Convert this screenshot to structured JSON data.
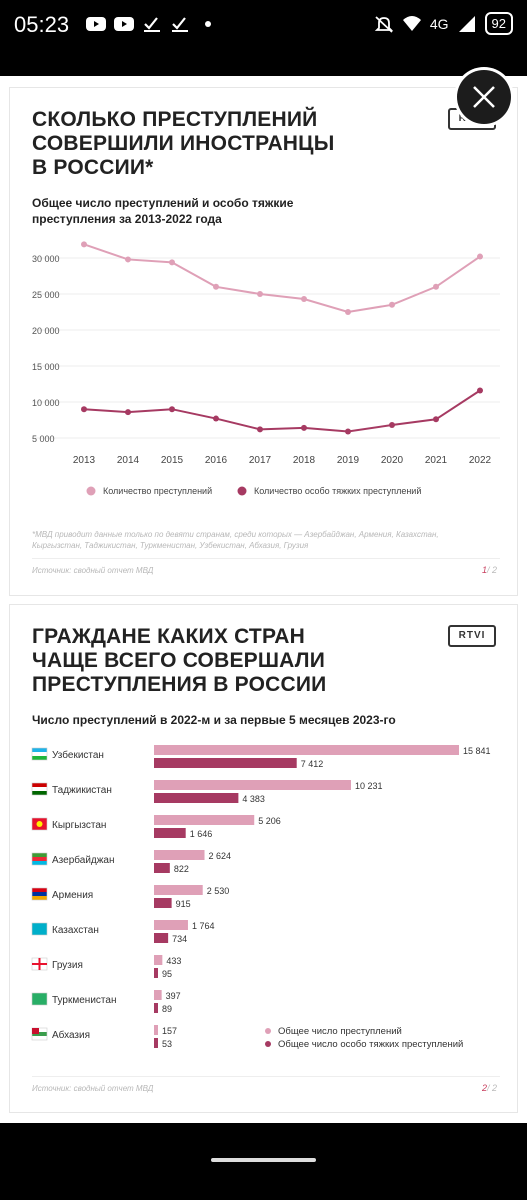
{
  "status_bar": {
    "time": "05:23",
    "network": "4G",
    "battery": "92",
    "icons": [
      "youtube-icon",
      "youtube-icon",
      "check-icon",
      "check-icon",
      "dot-icon",
      "mute-icon",
      "wifi-icon",
      "signal-icon"
    ]
  },
  "colors": {
    "light": "#dfa0b7",
    "dark": "#a63a62",
    "accent": "#c83c5c"
  },
  "card1": {
    "title_lines": [
      "СКОЛЬКО ПРЕСТУПЛЕНИЙ",
      "СОВЕРШИЛИ ИНОСТРАНЦЫ",
      "В РОССИИ*"
    ],
    "logo": "RTVI",
    "subtitle_lines": [
      "Общее число преступлений и особо тяжкие",
      "преступления за 2013-2022 года"
    ],
    "footnote_lines": [
      "*МВД приводит данные только по девяти странам, среди которых — Азербайджан, Армения, Казахстан,",
      "Кыргызстан, Таджикистан, Туркменистан, Узбекистан, Абхазия, Грузия"
    ],
    "source": "Источник: сводный отчет МВД",
    "page_current": "1",
    "page_total": "/ 2"
  },
  "card2": {
    "title_lines": [
      "ГРАЖДАНЕ КАКИХ СТРАН",
      "ЧАЩЕ ВСЕГО СОВЕРШАЛИ",
      "ПРЕСТУПЛЕНИЯ В РОССИИ"
    ],
    "logo": "RTVI",
    "subtitle": "Число преступлений в 2022-м и за первые 5 месяцев 2023-го",
    "source": "Источник: сводный отчет МВД",
    "page_current": "2",
    "page_total": "/ 2"
  },
  "chart_data": [
    {
      "type": "line",
      "title": "Общее число преступлений и особо тяжкие преступления за 2013-2022 года",
      "x": [
        2013,
        2014,
        2015,
        2016,
        2017,
        2018,
        2019,
        2020,
        2021,
        2022
      ],
      "x_tick_labels": [
        "2013",
        "2014",
        "2015",
        "2016",
        "2017",
        "2018",
        "2019",
        "2020",
        "2021",
        "2022"
      ],
      "y_tick_labels": [
        "30 000",
        "25 000",
        "20 000",
        "15 000",
        "10 000",
        "5 000"
      ],
      "y_ticks": [
        30000,
        25000,
        20000,
        15000,
        10000,
        5000
      ],
      "ylim": [
        5000,
        30000
      ],
      "grid": true,
      "legend_position": "bottom",
      "series": [
        {
          "name": "Количество преступлений",
          "color": "#dfa0b7",
          "values": [
            31900,
            29800,
            29400,
            26000,
            25000,
            24300,
            22500,
            23500,
            26000,
            30200
          ]
        },
        {
          "name": "Количество особо тяжких преступлений",
          "color": "#a63a62",
          "values": [
            9000,
            8600,
            9000,
            7700,
            6200,
            6400,
            5900,
            6800,
            7600,
            11600
          ]
        }
      ]
    },
    {
      "type": "bar",
      "orientation": "horizontal",
      "title": "Число преступлений в 2022-м и за первые 5 месяцев 2023-го",
      "categories": [
        "Узбекистан",
        "Таджикистан",
        "Кыргызстан",
        "Азербайджан",
        "Армения",
        "Казахстан",
        "Грузия",
        "Туркменистан",
        "Абхазия"
      ],
      "flags": [
        "uzbekistan-flag-icon",
        "tajikistan-flag-icon",
        "kyrgyzstan-flag-icon",
        "azerbaijan-flag-icon",
        "armenia-flag-icon",
        "kazakhstan-flag-icon",
        "georgia-flag-icon",
        "turkmenistan-flag-icon",
        "abkhazia-flag-icon"
      ],
      "legend_position": "bottom-right",
      "series": [
        {
          "name": "Общее число преступлений",
          "color": "#dfa0b7",
          "values": [
            15841,
            10231,
            5206,
            2624,
            2530,
            1764,
            433,
            397,
            157
          ],
          "labels": [
            "15 841",
            "10 231",
            "5 206",
            "2 624",
            "2 530",
            "1 764",
            "433",
            "397",
            "157"
          ]
        },
        {
          "name": "Общее число особо тяжких преступлений",
          "color": "#a63a62",
          "values": [
            7412,
            4383,
            1646,
            822,
            915,
            734,
            95,
            89,
            53
          ],
          "labels": [
            "7 412",
            "4 383",
            "1 646",
            "822",
            "915",
            "734",
            "95",
            "89",
            "53"
          ]
        }
      ]
    }
  ]
}
